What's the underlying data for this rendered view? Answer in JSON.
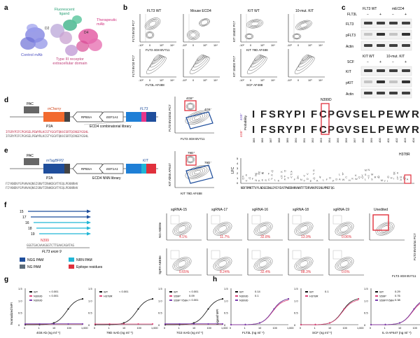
{
  "panels": {
    "a": {
      "letter": "a",
      "labels": {
        "fluorescent_ligand": "Fluorescent\nligand",
        "therapeutic_mab": "Therapeutic\nmAb",
        "control_mab": "Control mAb",
        "d2": "D2",
        "d4": "D4",
        "receptor": "Type III receptor\nextracellular domain"
      }
    },
    "b": {
      "letter": "b",
      "titles": [
        "FLT3 WT",
        "Mouse ECD4",
        "KIT WT",
        "10-mut. KIT"
      ],
      "ylabels": [
        "FLT3 BV10 PC7",
        "FLT3 BV10 PC7",
        "KIT 104D2 PC7",
        "KIT 104D2 PC7"
      ],
      "xlabels": [
        "FLT3 4G8 BV711",
        "FLT3L AF488",
        "KIT 79D AF488",
        "SCF AF488"
      ],
      "ticks": [
        "-10²",
        "0",
        "10³",
        "10⁴"
      ]
    },
    "c": {
      "letter": "c",
      "top": {
        "header_wt": "FLT3 WT",
        "header_mut": "mECD4",
        "treatment": "FLT3L",
        "lanes": [
          "−",
          "+",
          "−",
          "+"
        ],
        "blots": [
          "FLT3",
          "pFLT3",
          "Actin"
        ]
      },
      "bottom": {
        "header_wt": "KIT WT",
        "header_mut": "10-mut. KIT",
        "treatment": "SCF",
        "lanes": [
          "−",
          "+",
          "−",
          "+"
        ],
        "blots": [
          "KIT",
          "pKIT",
          "Actin"
        ]
      }
    },
    "d": {
      "letter": "d",
      "construct": [
        "PAC",
        "mCherry",
        "RPBSA",
        "EEF1A1",
        "FLT3"
      ],
      "p2a": "P2A",
      "library": "ECD4 combinatorial library",
      "seq1": "IFSRYPIFCPGVSELPEWYRLKCSTYGGVTQKAISRTQCNGEYGSHL",
      "seq2": "IFSRYPIFCPGVSELPEWYRLKCSTYGGVTQKAISRTQCNGEYGSHL",
      "flow_ylabel": "FLT3 BV10/44 PC7",
      "flow_xlabel": "FLT3 4G8 BV711",
      "gate_pos": "4G8⁺",
      "gate_neg": "4G8⁻",
      "logo_top_label": "4G8⁺",
      "logo_bottom_label": "4G8⁻",
      "logo_ylabel": "Probability",
      "logo_seq": "IFSRYPIFCPGVSELPEWYRLKCSTY",
      "mutation": "N399D",
      "positions": [
        "385",
        "386",
        "387",
        "388",
        "389",
        "390",
        "391",
        "392",
        "393",
        "394",
        "395",
        "396",
        "397",
        "398",
        "399",
        "400",
        "401",
        "402",
        "403",
        "404",
        "405",
        "406",
        "407",
        "408",
        "409",
        "410"
      ]
    },
    "e": {
      "letter": "e",
      "construct": [
        "PAC",
        "mTagBFP2",
        "RPBSA",
        "EEF1A1",
        "KIT"
      ],
      "p2a": "P2A",
      "library": "ECD4 NNN library",
      "seq1": "FIYKNDVYSPVHVAQNSISNVTIRHKDGVTYEQLPEKNRHV",
      "seq2": "FIYKNDVYSPVHVAQNSISNVTIRHKDGVTYEQLPEKNRHV",
      "flow_ylabel": "KIT Ab55 AF647",
      "flow_xlabel": "KIT 79D AF488",
      "gate_pos": "79D⁺",
      "gate_neg": "79D⁻",
      "lfc_label": "LFC",
      "mutation": "H378R",
      "axis_seq": "NDFRMNTTVYLNDGEDWLDYEYEAFPWBDHNVWNTFTDRVKKPESNLMMEFQG",
      "y_ticks": [
        "0",
        "1",
        "2",
        "3",
        "4",
        "5"
      ]
    },
    "f": {
      "letter": "f",
      "guides": [
        "15",
        "17",
        "16",
        "18",
        "19"
      ],
      "n399": "N399",
      "exon": "FLT3 exon 9",
      "legend": [
        "NGG PAM",
        "NRN PAM",
        "NG PAM",
        "Epitope residues"
      ],
      "legend_colors": [
        "#1f4e9c",
        "#21b6d6",
        "#5b6b7a",
        "#e0303c"
      ],
      "rows": [
        "NG-ABE8e",
        "SpRY-ABE8e"
      ],
      "cols": [
        "sgRNA-15",
        "sgRNA-17",
        "sgRNA-16",
        "sgRNA-18",
        "sgRNA-19",
        "Unedited"
      ],
      "pct_row1": [
        "4.1%",
        "11.7%",
        "32.8%",
        "13.9%",
        "0.06%"
      ],
      "pct_row2": [
        "0.65%",
        "8.24%",
        "32.4%",
        "88.3%",
        "0.6%"
      ],
      "xlabel": "FLT3 4G8 BV711",
      "ylabel": "FLT3 BV10/44 PC7"
    },
    "g": {
      "letter": "g",
      "ylabel": "Normalized MFI",
      "plots": [
        {
          "xlabel": "4G8 Ab (ng ml⁻¹)",
          "legend": [
            "WT",
            "N399D",
            "N399D"
          ],
          "pvals": [
            "< 0.001",
            "< 0.001"
          ]
        },
        {
          "xlabel": "79D mAb (ng ml⁻¹)",
          "legend": [
            "WT",
            "H378R"
          ],
          "pvals": [
            "< 0.001"
          ]
        },
        {
          "xlabel": "7G3 mAb (ng ml⁻¹)",
          "legend": [
            "WT",
            "S59P",
            "S59P Y58H"
          ],
          "pvals": [
            "< 0.001",
            "0.09",
            "< 0.001"
          ]
        }
      ],
      "x_ticks": [
        "0",
        "1",
        "10",
        "100",
        "1,000"
      ],
      "y_ticks": [
        "0",
        "0.5",
        "1.0",
        "1.5"
      ]
    },
    "h": {
      "letter": "h",
      "ylabel": "Ligand MFI",
      "plots": [
        {
          "xlabel": "FLT3L (ng ml⁻¹)",
          "legend": [
            "WT",
            "N399D",
            "N399D"
          ],
          "pvals": [
            "0.14",
            "0.1"
          ]
        },
        {
          "xlabel": "SCF (ng ml⁻¹)",
          "legend": [
            "WT",
            "H378R"
          ],
          "pvals": [
            "0.1"
          ]
        },
        {
          "xlabel": "IL-3-AF647 (ng ml⁻¹)",
          "legend": [
            "WT",
            "S59P",
            "S59P/Y58H"
          ],
          "pvals": [
            "0.29",
            "0.76",
            "0.38"
          ]
        }
      ],
      "x_ticks": [
        "0",
        "1",
        "10",
        "100",
        "1,000"
      ],
      "y_ticks": [
        "0",
        "0.5",
        "1.0",
        "1.5"
      ]
    }
  },
  "colors": {
    "wt": "#111111",
    "mut_pink": "#e0447a",
    "mut_purple": "#7a3fb0",
    "mut_blue": "#2f6db5",
    "gate_red": "#e0303c",
    "gate_navy": "#1f4e9c",
    "orange": "#f26a2e",
    "magenta": "#e8358a"
  }
}
